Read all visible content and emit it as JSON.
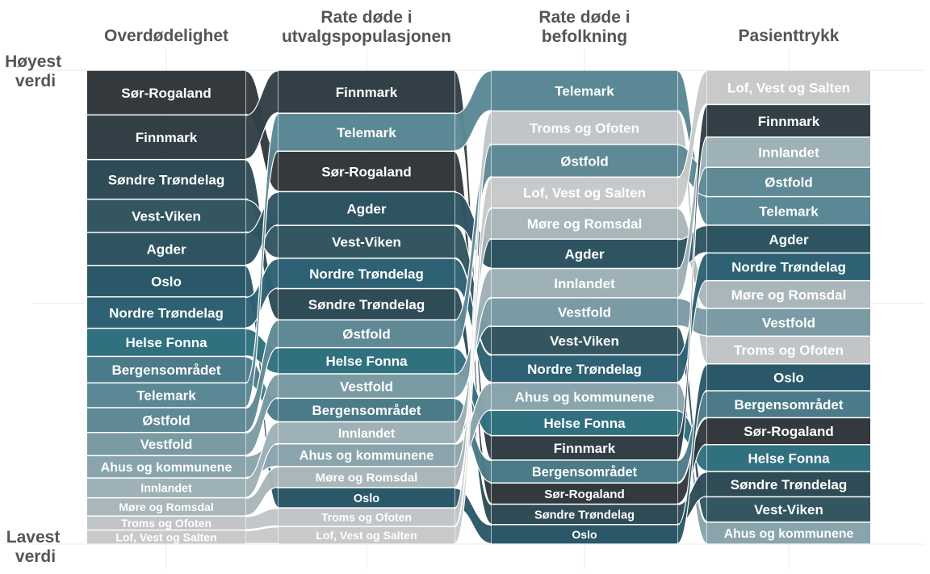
{
  "chart_data": {
    "type": "sankey-bump",
    "y_axis": {
      "top_label": [
        "Høyest",
        "verdi"
      ],
      "bottom_label": [
        "Lavest",
        "verdi"
      ]
    },
    "columns": [
      {
        "title": [
          "Overdødelighet"
        ],
        "items": [
          "Sør-Rogaland",
          "Finnmark",
          "Søndre Trøndelag",
          "Vest-Viken",
          "Agder",
          "Oslo",
          "Nordre Trøndelag",
          "Helse Fonna",
          "Bergensområdet",
          "Telemark",
          "Østfold",
          "Vestfold",
          "Ahus og kommunene",
          "Innlandet",
          "Møre og Romsdal",
          "Troms og Ofoten",
          "Lof, Vest og Salten"
        ],
        "weights": [
          54,
          54,
          48,
          40,
          40,
          38,
          38,
          34,
          32,
          30,
          30,
          28,
          27,
          24,
          22,
          17,
          17
        ]
      },
      {
        "title": [
          "Rate døde i",
          "utvalgspopulasjonen"
        ],
        "items": [
          "Finnmark",
          "Telemark",
          "Sør-Rogaland",
          "Agder",
          "Vest-Viken",
          "Nordre Trøndelag",
          "Søndre Trøndelag",
          "Østfold",
          "Helse Fonna",
          "Vestfold",
          "Bergensområdet",
          "Innlandet",
          "Ahus og kommunene",
          "Møre og Romsdal",
          "Oslo",
          "Troms og Ofoten",
          "Lof, Vest og Salten"
        ],
        "weights": [
          51,
          45,
          48,
          40,
          39,
          36,
          37,
          33,
          31,
          29,
          28,
          26,
          27,
          25,
          24,
          22,
          21
        ]
      },
      {
        "title": [
          "Rate døde i",
          "befolkning"
        ],
        "items": [
          "Telemark",
          "Troms og Ofoten",
          "Østfold",
          "Lof, Vest og Salten",
          "Møre og Romsdal",
          "Agder",
          "Innlandet",
          "Vestfold",
          "Vest-Viken",
          "Nordre Trøndelag",
          "Ahus og kommunene",
          "Helse Fonna",
          "Finnmark",
          "Bergensområdet",
          "Sør-Rogaland",
          "Søndre Trøndelag",
          "Oslo"
        ],
        "weights": [
          50,
          41,
          40,
          38,
          38,
          36,
          36,
          35,
          35,
          34,
          34,
          31,
          30,
          28,
          26,
          25,
          24
        ]
      },
      {
        "title": [
          "Pasienttrykk"
        ],
        "items": [
          "Lof, Vest og Salten",
          "Finnmark",
          "Innlandet",
          "Østfold",
          "Telemark",
          "Agder",
          "Nordre Trøndelag",
          "Møre og Romsdal",
          "Vestfold",
          "Troms og Ofoten",
          "Oslo",
          "Bergensområdet",
          "Sør-Rogaland",
          "Helse Fonna",
          "Søndre Trøndelag",
          "Vest-Viken",
          "Ahus og kommunene"
        ],
        "weights": [
          42,
          40,
          37,
          36,
          35,
          34,
          34,
          34,
          34,
          34,
          33,
          33,
          33,
          33,
          31,
          31,
          27
        ]
      }
    ],
    "colors": {
      "Sør-Rogaland": "#33393d",
      "Finnmark": "#323f46",
      "Søndre Trøndelag": "#2f4b55",
      "Vest-Viken": "#335660",
      "Agder": "#2e5462",
      "Oslo": "#2b5868",
      "Nordre Trøndelag": "#2d6173",
      "Helse Fonna": "#31707f",
      "Bergensområdet": "#4b7b88",
      "Telemark": "#5b8895",
      "Østfold": "#5f8995",
      "Vestfold": "#7b9ba4",
      "Ahus og kommunene": "#89a4ac",
      "Innlandet": "#9eb1b6",
      "Møre og Romsdal": "#a9b6ba",
      "Troms og Ofoten": "#c1c5c7",
      "Lof, Vest og Salten": "#c8c9ca"
    },
    "legend": null
  }
}
